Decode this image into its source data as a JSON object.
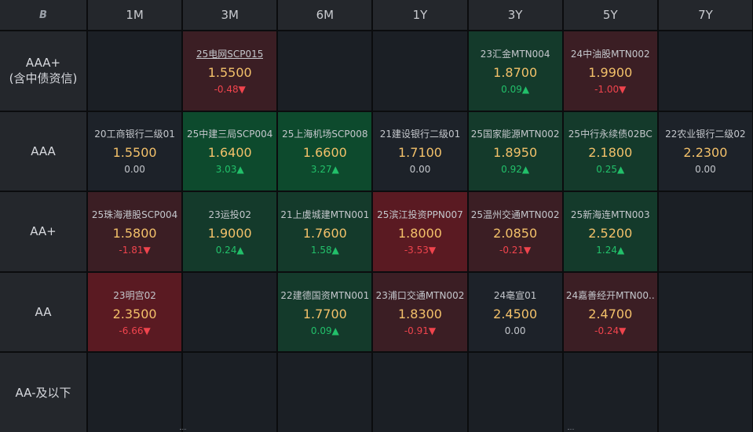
{
  "logo_glyph": "B",
  "columns": [
    "1M",
    "3M",
    "6M",
    "1Y",
    "3Y",
    "5Y",
    "7Y"
  ],
  "rows": [
    {
      "label": "AAA+\n(含中债资信)",
      "cells": [
        null,
        {
          "name": "25电网SCP015",
          "rate": "1.5500",
          "change": "-0.48▼",
          "dir": "neg",
          "tone": "dnl",
          "link": true
        },
        null,
        null,
        {
          "name": "23汇金MTN004",
          "rate": "1.8700",
          "change": "0.09▲",
          "dir": "pos",
          "tone": "upl"
        },
        {
          "name": "24中油股MTN002",
          "rate": "1.9900",
          "change": "-1.00▼",
          "dir": "neg",
          "tone": "dnl"
        },
        null
      ]
    },
    {
      "label": "AAA",
      "cells": [
        {
          "name": "20工商银行二级01",
          "rate": "1.5500",
          "change": "0.00",
          "dir": "zero",
          "tone": "neu"
        },
        {
          "name": "25中建三局SCP004",
          "rate": "1.6400",
          "change": "3.03▲",
          "dir": "pos",
          "tone": "up"
        },
        {
          "name": "25上海机场SCP008",
          "rate": "1.6600",
          "change": "3.27▲",
          "dir": "pos",
          "tone": "up"
        },
        {
          "name": "21建设银行二级01",
          "rate": "1.7100",
          "change": "0.00",
          "dir": "zero",
          "tone": "neu"
        },
        {
          "name": "25国家能源MTN002",
          "rate": "1.8950",
          "change": "0.92▲",
          "dir": "pos",
          "tone": "upl"
        },
        {
          "name": "25中行永续债02BC",
          "rate": "2.1800",
          "change": "0.25▲",
          "dir": "pos",
          "tone": "upl"
        },
        {
          "name": "22农业银行二级02",
          "rate": "2.2300",
          "change": "0.00",
          "dir": "zero",
          "tone": "neu"
        }
      ]
    },
    {
      "label": "AA+",
      "cells": [
        {
          "name": "25珠海港股SCP004",
          "rate": "1.5800",
          "change": "-1.81▼",
          "dir": "neg",
          "tone": "dnl"
        },
        {
          "name": "23运投02",
          "rate": "1.9000",
          "change": "0.24▲",
          "dir": "pos",
          "tone": "upl"
        },
        {
          "name": "21上虞城建MTN001",
          "rate": "1.7600",
          "change": "1.58▲",
          "dir": "pos",
          "tone": "upl"
        },
        {
          "name": "25滨江投资PPN007",
          "rate": "1.8000",
          "change": "-3.53▼",
          "dir": "neg",
          "tone": "dn"
        },
        {
          "name": "25温州交通MTN002",
          "rate": "2.0850",
          "change": "-0.21▼",
          "dir": "neg",
          "tone": "dnl"
        },
        {
          "name": "25新海连MTN003",
          "rate": "2.5200",
          "change": "1.24▲",
          "dir": "pos",
          "tone": "upl"
        },
        null
      ]
    },
    {
      "label": "AA",
      "cells": [
        {
          "name": "23明宫02",
          "rate": "2.3500",
          "change": "-6.66▼",
          "dir": "neg",
          "tone": "dn"
        },
        null,
        {
          "name": "22建德国资MTN001",
          "rate": "1.7700",
          "change": "0.09▲",
          "dir": "pos",
          "tone": "upl"
        },
        {
          "name": "23浦口交通MTN002",
          "rate": "1.8300",
          "change": "-0.91▼",
          "dir": "neg",
          "tone": "dnl"
        },
        {
          "name": "24亳宣01",
          "rate": "2.4500",
          "change": "0.00",
          "dir": "zero",
          "tone": "neu"
        },
        {
          "name": "24嘉善经开MTN00..",
          "rate": "2.4700",
          "change": "-0.24▼",
          "dir": "neg",
          "tone": "dnl"
        },
        null
      ]
    },
    {
      "label": "AA-及以下",
      "cells": [
        null,
        null,
        null,
        null,
        null,
        null,
        null
      ]
    }
  ]
}
